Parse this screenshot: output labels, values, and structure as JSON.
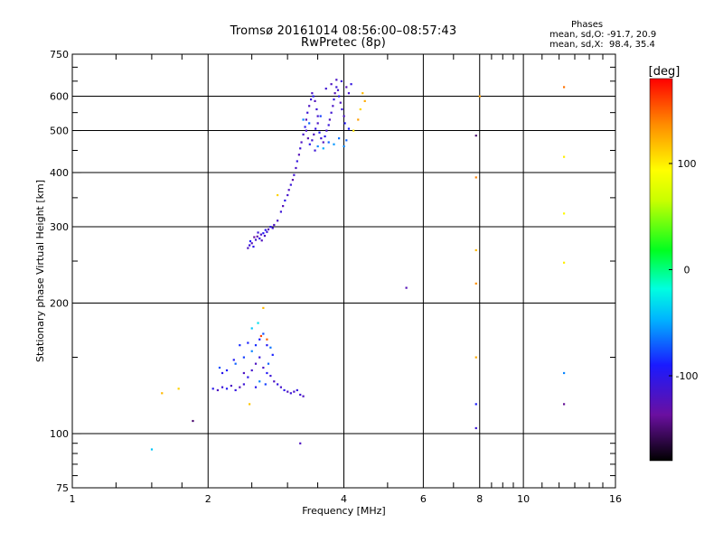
{
  "title": "Tromsø 20161014 08:56:00–08:57:43",
  "subtitle": "RwPretec (8p)",
  "phases": {
    "heading": "Phases",
    "line1": "mean, sd,O: -91.7, 20.9",
    "line2": "mean, sd,X:  98.4, 35.4"
  },
  "colorbar": {
    "label": "[deg]",
    "range": [
      -180,
      180
    ],
    "ticks": [
      100,
      0,
      -100
    ],
    "tick_labels": [
      "100",
      "0",
      "-100"
    ]
  },
  "chart_data": {
    "type": "scatter",
    "xlabel": "Frequency [MHz]",
    "ylabel": "Stationary phase Virtual Height [km]",
    "x_scale": "log2",
    "y_scale": "log",
    "xlim": [
      1,
      16
    ],
    "ylim": [
      75,
      750
    ],
    "x_ticks": [
      1,
      2,
      4,
      6,
      8,
      10,
      16
    ],
    "x_tick_labels": [
      "1",
      "2",
      "4",
      "6",
      "8",
      "10",
      "16"
    ],
    "y_ticks": [
      75,
      100,
      200,
      300,
      400,
      500,
      600,
      750
    ],
    "y_tick_labels": [
      "75",
      "100",
      "200",
      "300",
      "400",
      "500",
      "600",
      "750"
    ],
    "grid": true,
    "points": [
      [
        2.45,
        268,
        -120
      ],
      [
        2.47,
        272,
        -110
      ],
      [
        2.5,
        275,
        -125
      ],
      [
        2.52,
        270,
        -100
      ],
      [
        2.55,
        280,
        -115
      ],
      [
        2.57,
        285,
        -130
      ],
      [
        2.6,
        282,
        -105
      ],
      [
        2.62,
        288,
        -120
      ],
      [
        2.65,
        290,
        -95
      ],
      [
        2.67,
        286,
        -118
      ],
      [
        2.7,
        292,
        -110
      ],
      [
        2.72,
        296,
        -125
      ],
      [
        2.75,
        300,
        -100
      ],
      [
        2.78,
        298,
        -112
      ],
      [
        2.8,
        303,
        -120
      ],
      [
        2.48,
        278,
        -90
      ],
      [
        2.53,
        284,
        -135
      ],
      [
        2.58,
        291,
        -108
      ],
      [
        2.63,
        279,
        -122
      ],
      [
        2.68,
        295,
        -98
      ],
      [
        2.85,
        310,
        -118
      ],
      [
        2.9,
        325,
        -110
      ],
      [
        2.93,
        335,
        -125
      ],
      [
        2.96,
        345,
        -100
      ],
      [
        3.0,
        355,
        -115
      ],
      [
        3.02,
        365,
        -120
      ],
      [
        3.05,
        375,
        -108
      ],
      [
        3.08,
        385,
        -130
      ],
      [
        3.1,
        395,
        -112
      ],
      [
        3.13,
        410,
        -118
      ],
      [
        3.15,
        425,
        -105
      ],
      [
        3.18,
        440,
        -125
      ],
      [
        3.2,
        455,
        -110
      ],
      [
        3.22,
        470,
        -120
      ],
      [
        3.25,
        490,
        -115
      ],
      [
        3.28,
        510,
        -100
      ],
      [
        3.3,
        530,
        -125
      ],
      [
        3.32,
        550,
        -110
      ],
      [
        3.35,
        570,
        -120
      ],
      [
        3.38,
        590,
        -108
      ],
      [
        3.4,
        610,
        -118
      ],
      [
        3.42,
        600,
        -95
      ],
      [
        3.45,
        585,
        -122
      ],
      [
        3.48,
        560,
        -110
      ],
      [
        3.5,
        540,
        -115
      ],
      [
        3.3,
        500,
        -118
      ],
      [
        3.33,
        480,
        -125
      ],
      [
        3.36,
        465,
        -100
      ],
      [
        3.4,
        475,
        -112
      ],
      [
        3.43,
        490,
        -120
      ],
      [
        3.46,
        505,
        -105
      ],
      [
        3.5,
        520,
        -118
      ],
      [
        3.53,
        495,
        -95
      ],
      [
        3.56,
        480,
        -110
      ],
      [
        3.6,
        470,
        -122
      ],
      [
        3.63,
        485,
        -100
      ],
      [
        3.66,
        500,
        -115
      ],
      [
        3.7,
        515,
        -108
      ],
      [
        3.72,
        530,
        -120
      ],
      [
        3.75,
        550,
        -112
      ],
      [
        3.78,
        570,
        -118
      ],
      [
        3.8,
        590,
        -105
      ],
      [
        3.82,
        610,
        -125
      ],
      [
        3.85,
        630,
        -110
      ],
      [
        3.88,
        620,
        -115
      ],
      [
        3.9,
        600,
        -100
      ],
      [
        3.93,
        580,
        -120
      ],
      [
        3.96,
        560,
        -108
      ],
      [
        4.0,
        540,
        -118
      ],
      [
        4.02,
        520,
        -95
      ],
      [
        3.5,
        460,
        -60
      ],
      [
        3.6,
        455,
        -50
      ],
      [
        3.7,
        470,
        -70
      ],
      [
        3.8,
        465,
        -55
      ],
      [
        3.9,
        480,
        -65
      ],
      [
        4.0,
        460,
        -60
      ],
      [
        4.05,
        475,
        -70
      ],
      [
        3.45,
        450,
        -110
      ],
      [
        3.75,
        640,
        -120
      ],
      [
        3.95,
        650,
        -110
      ],
      [
        4.05,
        630,
        -125
      ],
      [
        4.1,
        610,
        -115
      ],
      [
        4.15,
        640,
        -105
      ],
      [
        3.85,
        655,
        -118
      ],
      [
        3.65,
        625,
        -112
      ],
      [
        4.4,
        610,
        120
      ],
      [
        4.35,
        560,
        110
      ],
      [
        4.3,
        530,
        130
      ],
      [
        4.45,
        585,
        125
      ],
      [
        4.2,
        500,
        105
      ],
      [
        2.85,
        355,
        110
      ],
      [
        3.55,
        540,
        -80
      ],
      [
        3.35,
        520,
        -70
      ],
      [
        4.1,
        505,
        -90
      ],
      [
        3.25,
        530,
        -60
      ],
      [
        2.05,
        127,
        -100
      ],
      [
        2.1,
        126,
        -120
      ],
      [
        2.15,
        128,
        -110
      ],
      [
        2.2,
        127,
        -95
      ],
      [
        2.25,
        129,
        -118
      ],
      [
        2.3,
        126,
        -105
      ],
      [
        2.35,
        128,
        -122
      ],
      [
        2.4,
        130,
        -110
      ],
      [
        2.45,
        135,
        -100
      ],
      [
        2.5,
        140,
        -115
      ],
      [
        2.55,
        145,
        -120
      ],
      [
        2.6,
        150,
        -108
      ],
      [
        2.65,
        142,
        -118
      ],
      [
        2.7,
        138,
        -95
      ],
      [
        2.75,
        136,
        -110
      ],
      [
        2.8,
        132,
        -120
      ],
      [
        2.85,
        130,
        -105
      ],
      [
        2.9,
        128,
        -115
      ],
      [
        2.95,
        126,
        -100
      ],
      [
        3.0,
        125,
        -120
      ],
      [
        3.05,
        124,
        -110
      ],
      [
        3.1,
        125,
        -118
      ],
      [
        3.15,
        126,
        -105
      ],
      [
        3.2,
        123,
        -112
      ],
      [
        3.25,
        122,
        -120
      ],
      [
        2.2,
        140,
        -90
      ],
      [
        2.3,
        145,
        -70
      ],
      [
        2.4,
        150,
        -80
      ],
      [
        2.5,
        155,
        -60
      ],
      [
        2.55,
        160,
        -85
      ],
      [
        2.6,
        165,
        -90
      ],
      [
        2.65,
        170,
        -75
      ],
      [
        2.7,
        160,
        -95
      ],
      [
        2.75,
        158,
        -65
      ],
      [
        2.45,
        162,
        -88
      ],
      [
        2.5,
        175,
        -40
      ],
      [
        2.58,
        180,
        -30
      ],
      [
        2.62,
        168,
        160
      ],
      [
        2.7,
        165,
        150
      ],
      [
        2.65,
        195,
        120
      ],
      [
        2.35,
        160,
        -85
      ],
      [
        2.28,
        148,
        -95
      ],
      [
        2.15,
        138,
        -100
      ],
      [
        2.12,
        142,
        -75
      ],
      [
        2.4,
        138,
        -120
      ],
      [
        2.55,
        128,
        -100
      ],
      [
        2.6,
        132,
        -60
      ],
      [
        2.68,
        130,
        -80
      ],
      [
        2.72,
        145,
        -70
      ],
      [
        2.78,
        152,
        -88
      ],
      [
        1.58,
        124,
        120
      ],
      [
        1.72,
        127,
        110
      ],
      [
        2.47,
        117,
        115
      ],
      [
        1.85,
        107,
        -150
      ],
      [
        1.5,
        92,
        -40
      ],
      [
        3.2,
        95,
        -120
      ],
      [
        5.5,
        217,
        -125
      ],
      [
        7.85,
        487,
        -150
      ],
      [
        7.85,
        390,
        140
      ],
      [
        7.85,
        265,
        120
      ],
      [
        7.85,
        222,
        135
      ],
      [
        7.85,
        150,
        125
      ],
      [
        7.85,
        117,
        -90
      ],
      [
        7.85,
        103,
        -110
      ],
      [
        8.0,
        600,
        130
      ],
      [
        12.3,
        630,
        145
      ],
      [
        12.3,
        435,
        100
      ],
      [
        12.3,
        322,
        95
      ],
      [
        12.3,
        248,
        100
      ],
      [
        12.3,
        138,
        -60
      ],
      [
        12.3,
        117,
        -140
      ]
    ]
  }
}
